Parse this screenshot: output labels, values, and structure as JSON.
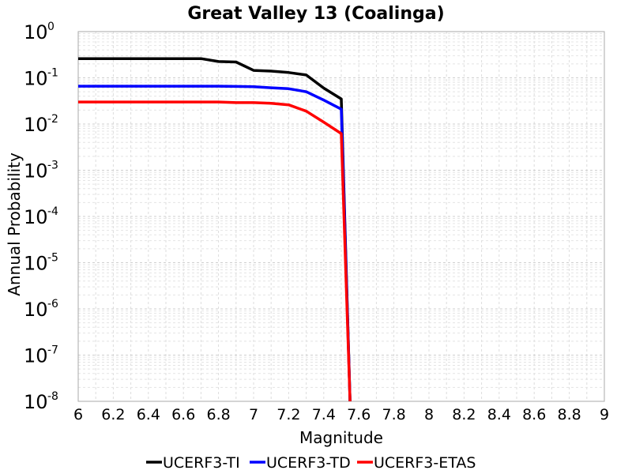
{
  "chart_data": {
    "type": "line",
    "title": "Great Valley 13 (Coalinga)",
    "xlabel": "Magnitude",
    "ylabel": "Annual Probability",
    "xlim": [
      6,
      9
    ],
    "ylim": [
      1e-08,
      1
    ],
    "y_scale": "log",
    "grid": true,
    "legend_position": "bottom",
    "x_ticks": [
      6,
      6.2,
      6.4,
      6.6,
      6.8,
      7,
      7.2,
      7.4,
      7.6,
      7.8,
      8,
      8.2,
      8.4,
      8.6,
      8.8,
      9
    ],
    "x_tick_labels": [
      "6",
      "6.2",
      "6.4",
      "6.6",
      "6.8",
      "7",
      "7.2",
      "7.4",
      "7.6",
      "7.8",
      "8",
      "8.2",
      "8.4",
      "8.6",
      "8.8",
      "9"
    ],
    "y_ticks": [
      {
        "base": "10",
        "exp": "0"
      },
      {
        "base": "10",
        "exp": "-1"
      },
      {
        "base": "10",
        "exp": "-2"
      },
      {
        "base": "10",
        "exp": "-3"
      },
      {
        "base": "10",
        "exp": "-4"
      },
      {
        "base": "10",
        "exp": "-5"
      },
      {
        "base": "10",
        "exp": "-6"
      },
      {
        "base": "10",
        "exp": "-7"
      },
      {
        "base": "10",
        "exp": "-8"
      }
    ],
    "series": [
      {
        "name": "UCERF3-TI",
        "color": "#000000",
        "x": [
          6.0,
          6.1,
          6.2,
          6.3,
          6.4,
          6.5,
          6.6,
          6.7,
          6.8,
          6.9,
          7.0,
          7.1,
          7.2,
          7.3,
          7.4,
          7.5,
          7.55
        ],
        "y": [
          0.26,
          0.26,
          0.26,
          0.26,
          0.26,
          0.26,
          0.26,
          0.26,
          0.225,
          0.22,
          0.145,
          0.14,
          0.13,
          0.115,
          0.06,
          0.035,
          1e-08
        ]
      },
      {
        "name": "UCERF3-TD",
        "color": "#0000ff",
        "x": [
          6.0,
          6.1,
          6.2,
          6.3,
          6.4,
          6.5,
          6.6,
          6.7,
          6.8,
          6.9,
          7.0,
          7.1,
          7.2,
          7.3,
          7.4,
          7.5,
          7.55
        ],
        "y": [
          0.066,
          0.066,
          0.066,
          0.066,
          0.066,
          0.066,
          0.066,
          0.066,
          0.066,
          0.065,
          0.064,
          0.061,
          0.058,
          0.05,
          0.033,
          0.021,
          1e-08
        ]
      },
      {
        "name": "UCERF3-ETAS",
        "color": "#ff0000",
        "x": [
          6.0,
          6.1,
          6.2,
          6.3,
          6.4,
          6.5,
          6.6,
          6.7,
          6.8,
          6.9,
          7.0,
          7.1,
          7.2,
          7.3,
          7.4,
          7.5,
          7.55
        ],
        "y": [
          0.03,
          0.03,
          0.03,
          0.03,
          0.03,
          0.03,
          0.03,
          0.03,
          0.03,
          0.029,
          0.029,
          0.028,
          0.026,
          0.019,
          0.011,
          0.0062,
          1e-08
        ]
      }
    ]
  }
}
